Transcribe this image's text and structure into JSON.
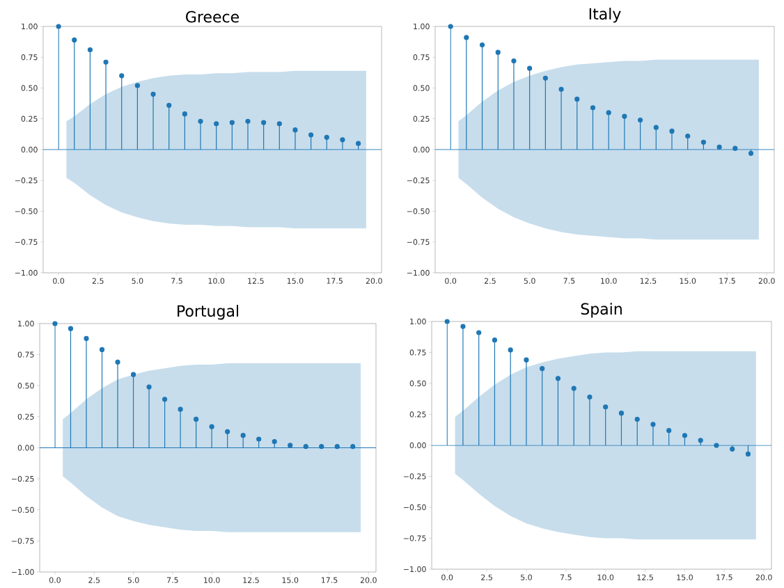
{
  "chart_data": [
    {
      "type": "lollipop",
      "title": "Greece",
      "xlim": [
        -0.975,
        20.475
      ],
      "ylim": [
        -1,
        1
      ],
      "xticks": [
        {
          "value": 0,
          "label": "0.0"
        },
        {
          "value": 2.5,
          "label": "2.5"
        },
        {
          "value": 5,
          "label": "5.0"
        },
        {
          "value": 7.5,
          "label": "7.5"
        },
        {
          "value": 10,
          "label": "10.0"
        },
        {
          "value": 12.5,
          "label": "12.5"
        },
        {
          "value": 15,
          "label": "15.0"
        },
        {
          "value": 17.5,
          "label": "17.5"
        },
        {
          "value": 20,
          "label": "20.0"
        }
      ],
      "yticks": [
        {
          "value": -1,
          "label": "−1.00"
        },
        {
          "value": -0.75,
          "label": "−0.75"
        },
        {
          "value": -0.5,
          "label": "−0.50"
        },
        {
          "value": -0.25,
          "label": "−0.25"
        },
        {
          "value": 0,
          "label": "0.00"
        },
        {
          "value": 0.25,
          "label": "0.25"
        },
        {
          "value": 0.5,
          "label": "0.50"
        },
        {
          "value": 0.75,
          "label": "0.75"
        },
        {
          "value": 1,
          "label": "1.00"
        }
      ],
      "series": [
        {
          "type": "lollipop",
          "marker": "circle",
          "color": "#1f77b4",
          "x": [
            0,
            1,
            2,
            3,
            4,
            5,
            6,
            7,
            8,
            9,
            10,
            11,
            12,
            13,
            14,
            15,
            16,
            17,
            18,
            19
          ],
          "values": [
            1,
            0.89,
            0.81,
            0.71,
            0.6,
            0.52,
            0.45,
            0.36,
            0.29,
            0.23,
            0.21,
            0.22,
            0.23,
            0.22,
            0.21,
            0.16,
            0.12,
            0.1,
            0.08,
            0.05
          ]
        },
        {
          "type": "line",
          "color": "#1f77b4",
          "x": [
            -0.975,
            0.5,
            1,
            2,
            3,
            4,
            5,
            6,
            7,
            8,
            9,
            10,
            11,
            12,
            13,
            14,
            15,
            16,
            17,
            18,
            19,
            19.5,
            20.475
          ],
          "values": [
            0,
            0,
            0,
            0,
            0,
            0,
            0,
            0,
            0,
            0,
            0,
            0,
            0,
            0,
            0,
            0,
            0,
            0,
            0,
            0,
            0,
            0,
            0
          ],
          "upper": [
            null,
            0.23,
            0.27,
            0.37,
            0.45,
            0.51,
            0.55,
            0.58,
            0.6,
            0.61,
            0.61,
            0.62,
            0.62,
            0.63,
            0.63,
            0.63,
            0.64,
            0.64,
            0.64,
            0.64,
            0.64,
            0.64,
            null
          ],
          "lower": [
            null,
            -0.23,
            -0.27,
            -0.37,
            -0.45,
            -0.51,
            -0.55,
            -0.58,
            -0.6,
            -0.61,
            -0.61,
            -0.62,
            -0.62,
            -0.63,
            -0.63,
            -0.63,
            -0.64,
            -0.64,
            -0.64,
            -0.64,
            -0.64,
            -0.64,
            null
          ]
        }
      ]
    },
    {
      "type": "lollipop",
      "title": "Italy",
      "xlim": [
        -0.975,
        20.475
      ],
      "ylim": [
        -1,
        1
      ],
      "xticks": [
        {
          "value": 0,
          "label": "0.0"
        },
        {
          "value": 2.5,
          "label": "2.5"
        },
        {
          "value": 5,
          "label": "5.0"
        },
        {
          "value": 7.5,
          "label": "7.5"
        },
        {
          "value": 10,
          "label": "10.0"
        },
        {
          "value": 12.5,
          "label": "12.5"
        },
        {
          "value": 15,
          "label": "15.0"
        },
        {
          "value": 17.5,
          "label": "17.5"
        },
        {
          "value": 20,
          "label": "20.0"
        }
      ],
      "yticks": [
        {
          "value": -1,
          "label": "−1.00"
        },
        {
          "value": -0.75,
          "label": "−0.75"
        },
        {
          "value": -0.5,
          "label": "−0.50"
        },
        {
          "value": -0.25,
          "label": "−0.25"
        },
        {
          "value": 0,
          "label": "0.00"
        },
        {
          "value": 0.25,
          "label": "0.25"
        },
        {
          "value": 0.5,
          "label": "0.50"
        },
        {
          "value": 0.75,
          "label": "0.75"
        },
        {
          "value": 1,
          "label": "1.00"
        }
      ],
      "series": [
        {
          "type": "lollipop",
          "marker": "circle",
          "color": "#1f77b4",
          "x": [
            0,
            1,
            2,
            3,
            4,
            5,
            6,
            7,
            8,
            9,
            10,
            11,
            12,
            13,
            14,
            15,
            16,
            17,
            18,
            19
          ],
          "values": [
            1,
            0.91,
            0.85,
            0.79,
            0.72,
            0.66,
            0.58,
            0.49,
            0.41,
            0.34,
            0.3,
            0.27,
            0.24,
            0.18,
            0.15,
            0.11,
            0.06,
            0.02,
            0.01,
            -0.03
          ]
        },
        {
          "type": "line",
          "color": "#1f77b4",
          "x": [
            -0.975,
            0.5,
            1,
            2,
            3,
            4,
            5,
            6,
            7,
            8,
            9,
            10,
            11,
            12,
            13,
            14,
            15,
            16,
            17,
            18,
            19,
            19.5,
            20.475
          ],
          "values": [
            0,
            0,
            0,
            0,
            0,
            0,
            0,
            0,
            0,
            0,
            0,
            0,
            0,
            0,
            0,
            0,
            0,
            0,
            0,
            0,
            0,
            0,
            0
          ],
          "upper": [
            null,
            0.23,
            0.28,
            0.39,
            0.48,
            0.55,
            0.6,
            0.64,
            0.67,
            0.69,
            0.7,
            0.71,
            0.72,
            0.72,
            0.73,
            0.73,
            0.73,
            0.73,
            0.73,
            0.73,
            0.73,
            0.73,
            null
          ],
          "lower": [
            null,
            -0.23,
            -0.28,
            -0.39,
            -0.48,
            -0.55,
            -0.6,
            -0.64,
            -0.67,
            -0.69,
            -0.7,
            -0.71,
            -0.72,
            -0.72,
            -0.73,
            -0.73,
            -0.73,
            -0.73,
            -0.73,
            -0.73,
            -0.73,
            -0.73,
            null
          ]
        }
      ]
    },
    {
      "type": "lollipop",
      "title": "Portugal",
      "xlim": [
        -0.975,
        20.475
      ],
      "ylim": [
        -1,
        1
      ],
      "xticks": [
        {
          "value": 0,
          "label": "0.0"
        },
        {
          "value": 2.5,
          "label": "2.5"
        },
        {
          "value": 5,
          "label": "5.0"
        },
        {
          "value": 7.5,
          "label": "7.5"
        },
        {
          "value": 10,
          "label": "10.0"
        },
        {
          "value": 12.5,
          "label": "12.5"
        },
        {
          "value": 15,
          "label": "15.0"
        },
        {
          "value": 17.5,
          "label": "17.5"
        },
        {
          "value": 20,
          "label": "20.0"
        }
      ],
      "yticks": [
        {
          "value": -1,
          "label": "−1.00"
        },
        {
          "value": -0.75,
          "label": "−0.75"
        },
        {
          "value": -0.5,
          "label": "−0.50"
        },
        {
          "value": -0.25,
          "label": "−0.25"
        },
        {
          "value": 0,
          "label": "0.00"
        },
        {
          "value": 0.25,
          "label": "0.25"
        },
        {
          "value": 0.5,
          "label": "0.50"
        },
        {
          "value": 0.75,
          "label": "0.75"
        },
        {
          "value": 1,
          "label": "1.00"
        }
      ],
      "series": [
        {
          "type": "lollipop",
          "marker": "circle",
          "color": "#1f77b4",
          "x": [
            0,
            1,
            2,
            3,
            4,
            5,
            6,
            7,
            8,
            9,
            10,
            11,
            12,
            13,
            14,
            15,
            16,
            17,
            18,
            19
          ],
          "values": [
            1,
            0.96,
            0.88,
            0.79,
            0.69,
            0.59,
            0.49,
            0.39,
            0.31,
            0.23,
            0.17,
            0.13,
            0.1,
            0.07,
            0.05,
            0.02,
            0.01,
            0.01,
            0.01,
            0.01
          ]
        },
        {
          "type": "line",
          "color": "#1f77b4",
          "x": [
            -0.975,
            0.5,
            1,
            2,
            3,
            4,
            5,
            6,
            7,
            8,
            9,
            10,
            11,
            12,
            13,
            14,
            15,
            16,
            17,
            18,
            19,
            19.5,
            20.475
          ],
          "values": [
            0,
            0,
            0,
            0,
            0,
            0,
            0,
            0,
            0,
            0,
            0,
            0,
            0,
            0,
            0,
            0,
            0,
            0,
            0,
            0,
            0,
            0,
            0
          ],
          "upper": [
            null,
            0.23,
            0.28,
            0.39,
            0.48,
            0.55,
            0.59,
            0.62,
            0.64,
            0.66,
            0.67,
            0.67,
            0.68,
            0.68,
            0.68,
            0.68,
            0.68,
            0.68,
            0.68,
            0.68,
            0.68,
            0.68,
            null
          ],
          "lower": [
            null,
            -0.23,
            -0.28,
            -0.39,
            -0.48,
            -0.55,
            -0.59,
            -0.62,
            -0.64,
            -0.66,
            -0.67,
            -0.67,
            -0.68,
            -0.68,
            -0.68,
            -0.68,
            -0.68,
            -0.68,
            -0.68,
            -0.68,
            -0.68,
            -0.68,
            null
          ]
        }
      ]
    },
    {
      "type": "lollipop",
      "title": "Spain",
      "xlim": [
        -0.975,
        20.475
      ],
      "ylim": [
        -1,
        1
      ],
      "xticks": [
        {
          "value": 0,
          "label": "0.0"
        },
        {
          "value": 2.5,
          "label": "2.5"
        },
        {
          "value": 5,
          "label": "5.0"
        },
        {
          "value": 7.5,
          "label": "7.5"
        },
        {
          "value": 10,
          "label": "10.0"
        },
        {
          "value": 12.5,
          "label": "12.5"
        },
        {
          "value": 15,
          "label": "15.0"
        },
        {
          "value": 17.5,
          "label": "17.5"
        },
        {
          "value": 20,
          "label": "20.0"
        }
      ],
      "yticks": [
        {
          "value": -1,
          "label": "−1.00"
        },
        {
          "value": -0.75,
          "label": "−0.75"
        },
        {
          "value": -0.5,
          "label": "−0.50"
        },
        {
          "value": -0.25,
          "label": "−0.25"
        },
        {
          "value": 0,
          "label": "0.00"
        },
        {
          "value": 0.25,
          "label": "0.25"
        },
        {
          "value": 0.5,
          "label": "0.50"
        },
        {
          "value": 0.75,
          "label": "0.75"
        },
        {
          "value": 1,
          "label": "1.00"
        }
      ],
      "series": [
        {
          "type": "lollipop",
          "marker": "circle",
          "color": "#1f77b4",
          "x": [
            0,
            1,
            2,
            3,
            4,
            5,
            6,
            7,
            8,
            9,
            10,
            11,
            12,
            13,
            14,
            15,
            16,
            17,
            18,
            19
          ],
          "values": [
            1,
            0.96,
            0.91,
            0.85,
            0.77,
            0.69,
            0.62,
            0.54,
            0.46,
            0.39,
            0.31,
            0.26,
            0.21,
            0.17,
            0.12,
            0.08,
            0.04,
            0.0,
            -0.03,
            -0.07
          ]
        },
        {
          "type": "line",
          "color": "#1f77b4",
          "x": [
            -0.975,
            0.5,
            1,
            2,
            3,
            4,
            5,
            6,
            7,
            8,
            9,
            10,
            11,
            12,
            13,
            14,
            15,
            16,
            17,
            18,
            19,
            19.5,
            20.475
          ],
          "values": [
            0,
            0,
            0,
            0,
            0,
            0,
            0,
            0,
            0,
            0,
            0,
            0,
            0,
            0,
            0,
            0,
            0,
            0,
            0,
            0,
            0,
            0,
            0
          ],
          "upper": [
            null,
            0.23,
            0.28,
            0.39,
            0.49,
            0.57,
            0.63,
            0.67,
            0.7,
            0.72,
            0.74,
            0.75,
            0.75,
            0.76,
            0.76,
            0.76,
            0.76,
            0.76,
            0.76,
            0.76,
            0.76,
            0.76,
            null
          ],
          "lower": [
            null,
            -0.23,
            -0.28,
            -0.39,
            -0.49,
            -0.57,
            -0.63,
            -0.67,
            -0.7,
            -0.72,
            -0.74,
            -0.75,
            -0.75,
            -0.76,
            -0.76,
            -0.76,
            -0.76,
            -0.76,
            -0.76,
            -0.76,
            -0.76,
            -0.76,
            null
          ]
        }
      ]
    }
  ]
}
